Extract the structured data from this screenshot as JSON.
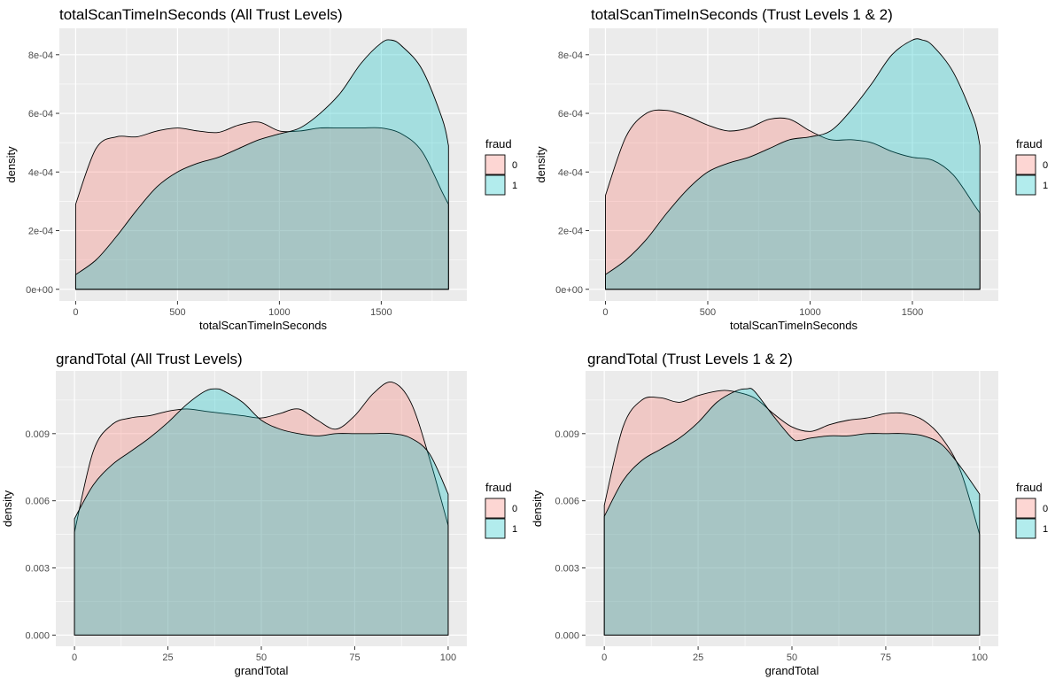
{
  "colors": {
    "fraud_0": "#F8766D",
    "fraud_1": "#00BFC4",
    "panel_bg": "#EBEBEB",
    "grid": "#FFFFFF"
  },
  "chart_data": [
    {
      "type": "area",
      "title": "totalScanTimeInSeconds (All Trust Levels)",
      "xlabel": "totalScanTimeInSeconds",
      "ylabel": "density",
      "xlim": [
        -80,
        1920
      ],
      "ylim": [
        -4e-05,
        0.00089
      ],
      "x_ticks": [
        0,
        500,
        1000,
        1500
      ],
      "x_tick_labels": [
        "0",
        "500",
        "1000",
        "1500"
      ],
      "y_ticks": [
        0,
        0.0002,
        0.0004,
        0.0006,
        0.0008
      ],
      "y_tick_labels": [
        "0e+00",
        "2e-04",
        "4e-04",
        "6e-04",
        "8e-04"
      ],
      "legend": {
        "title": "fraud",
        "entries": [
          "0",
          "1"
        ],
        "position": "right"
      },
      "series": [
        {
          "name": "0",
          "x": [
            0,
            100,
            200,
            300,
            400,
            500,
            600,
            700,
            800,
            900,
            1000,
            1100,
            1200,
            1300,
            1400,
            1500,
            1600,
            1700,
            1800,
            1830
          ],
          "y": [
            0.00029,
            0.00048,
            0.00052,
            0.00052,
            0.00054,
            0.00055,
            0.00054,
            0.000535,
            0.00056,
            0.00057,
            0.00054,
            0.00054,
            0.00055,
            0.00055,
            0.00055,
            0.00055,
            0.00053,
            0.00047,
            0.00033,
            0.00029
          ]
        },
        {
          "name": "1",
          "x": [
            0,
            100,
            200,
            300,
            400,
            500,
            600,
            700,
            800,
            900,
            1000,
            1100,
            1200,
            1300,
            1400,
            1500,
            1550,
            1600,
            1700,
            1800,
            1830
          ],
          "y": [
            5e-05,
            0.0001,
            0.00018,
            0.00027,
            0.00035,
            0.0004,
            0.00043,
            0.00045,
            0.00048,
            0.00051,
            0.00053,
            0.00055,
            0.0006,
            0.00067,
            0.00077,
            0.00084,
            0.00085,
            0.00083,
            0.00075,
            0.00058,
            0.00049
          ]
        }
      ]
    },
    {
      "type": "area",
      "title": "totalScanTimeInSeconds (Trust Levels 1 & 2)",
      "xlabel": "totalScanTimeInSeconds",
      "ylabel": "density",
      "xlim": [
        -80,
        1920
      ],
      "ylim": [
        -4e-05,
        0.00089
      ],
      "x_ticks": [
        0,
        500,
        1000,
        1500
      ],
      "x_tick_labels": [
        "0",
        "500",
        "1000",
        "1500"
      ],
      "y_ticks": [
        0,
        0.0002,
        0.0004,
        0.0006,
        0.0008
      ],
      "y_tick_labels": [
        "0e+00",
        "2e-04",
        "4e-04",
        "6e-04",
        "8e-04"
      ],
      "legend": {
        "title": "fraud",
        "entries": [
          "0",
          "1"
        ],
        "position": "right"
      },
      "series": [
        {
          "name": "0",
          "x": [
            0,
            100,
            200,
            300,
            400,
            500,
            600,
            700,
            800,
            900,
            1000,
            1100,
            1200,
            1300,
            1400,
            1500,
            1600,
            1700,
            1800,
            1830
          ],
          "y": [
            0.00032,
            0.00052,
            0.0006,
            0.00061,
            0.00059,
            0.00056,
            0.00054,
            0.00055,
            0.00058,
            0.00058,
            0.00054,
            0.00051,
            0.00051,
            0.0005,
            0.00047,
            0.00045,
            0.00044,
            0.00039,
            0.00029,
            0.00026
          ]
        },
        {
          "name": "1",
          "x": [
            0,
            100,
            200,
            300,
            400,
            500,
            600,
            700,
            800,
            900,
            1000,
            1100,
            1200,
            1300,
            1400,
            1500,
            1550,
            1600,
            1700,
            1800,
            1830
          ],
          "y": [
            5e-05,
            0.0001,
            0.00017,
            0.00026,
            0.00034,
            0.0004,
            0.00043,
            0.00045,
            0.00048,
            0.00051,
            0.00052,
            0.00054,
            0.00061,
            0.0007,
            0.0008,
            0.00085,
            0.00085,
            0.00083,
            0.00074,
            0.00058,
            0.00049
          ]
        }
      ]
    },
    {
      "type": "area",
      "title": "grandTotal (All Trust Levels)",
      "xlabel": "grandTotal",
      "ylabel": "density",
      "xlim": [
        -5,
        105
      ],
      "ylim": [
        -0.0005,
        0.0118
      ],
      "x_ticks": [
        0,
        25,
        50,
        75,
        100
      ],
      "x_tick_labels": [
        "0",
        "25",
        "50",
        "75",
        "100"
      ],
      "y_ticks": [
        0,
        0.003,
        0.006,
        0.009
      ],
      "y_tick_labels": [
        "0.000",
        "0.003",
        "0.006",
        "0.009"
      ],
      "legend": {
        "title": "fraud",
        "entries": [
          "0",
          "1"
        ],
        "position": "right"
      },
      "series": [
        {
          "name": "0",
          "x": [
            0,
            5,
            10,
            15,
            20,
            25,
            30,
            35,
            40,
            45,
            50,
            55,
            60,
            65,
            70,
            75,
            80,
            85,
            90,
            95,
            100
          ],
          "y": [
            0.0046,
            0.0082,
            0.0094,
            0.0097,
            0.0098,
            0.01,
            0.0101,
            0.01,
            0.0099,
            0.0098,
            0.0097,
            0.0099,
            0.0101,
            0.0096,
            0.0092,
            0.0098,
            0.0108,
            0.0113,
            0.0104,
            0.0079,
            0.0049
          ]
        },
        {
          "name": "1",
          "x": [
            0,
            5,
            10,
            15,
            20,
            25,
            30,
            35,
            38,
            40,
            45,
            50,
            55,
            60,
            65,
            70,
            75,
            80,
            85,
            90,
            95,
            100
          ],
          "y": [
            0.0052,
            0.0067,
            0.0076,
            0.0082,
            0.0088,
            0.0095,
            0.0103,
            0.0109,
            0.011,
            0.0109,
            0.0104,
            0.0096,
            0.0092,
            0.009,
            0.0089,
            0.009,
            0.009,
            0.009,
            0.009,
            0.0088,
            0.0081,
            0.0063
          ]
        }
      ]
    },
    {
      "type": "area",
      "title": "grandTotal (Trust Levels 1 & 2)",
      "xlabel": "grandTotal",
      "ylabel": "density",
      "xlim": [
        -5,
        105
      ],
      "ylim": [
        -0.0005,
        0.0118
      ],
      "x_ticks": [
        0,
        25,
        50,
        75,
        100
      ],
      "x_tick_labels": [
        "0",
        "25",
        "50",
        "75",
        "100"
      ],
      "y_ticks": [
        0,
        0.003,
        0.006,
        0.009
      ],
      "y_tick_labels": [
        "0.000",
        "0.003",
        "0.006",
        "0.009"
      ],
      "legend": {
        "title": "fraud",
        "entries": [
          "0",
          "1"
        ],
        "position": "right"
      },
      "series": [
        {
          "name": "0",
          "x": [
            0,
            5,
            10,
            15,
            20,
            25,
            30,
            34,
            40,
            45,
            50,
            55,
            60,
            65,
            70,
            75,
            80,
            85,
            90,
            95,
            100
          ],
          "y": [
            0.0058,
            0.0093,
            0.0105,
            0.0106,
            0.0104,
            0.0107,
            0.0109,
            0.0109,
            0.0106,
            0.0099,
            0.0093,
            0.0091,
            0.0094,
            0.0096,
            0.0097,
            0.0099,
            0.0099,
            0.0096,
            0.0088,
            0.0073,
            0.0045
          ]
        },
        {
          "name": "1",
          "x": [
            0,
            5,
            10,
            15,
            20,
            25,
            30,
            35,
            38,
            40,
            45,
            50,
            52,
            55,
            60,
            65,
            70,
            75,
            80,
            85,
            90,
            95,
            100
          ],
          "y": [
            0.0053,
            0.0069,
            0.0078,
            0.0083,
            0.0088,
            0.0095,
            0.0104,
            0.0109,
            0.011,
            0.0109,
            0.0098,
            0.0088,
            0.0087,
            0.0088,
            0.0089,
            0.0089,
            0.009,
            0.009,
            0.009,
            0.0089,
            0.0085,
            0.0075,
            0.0063
          ]
        }
      ]
    }
  ]
}
